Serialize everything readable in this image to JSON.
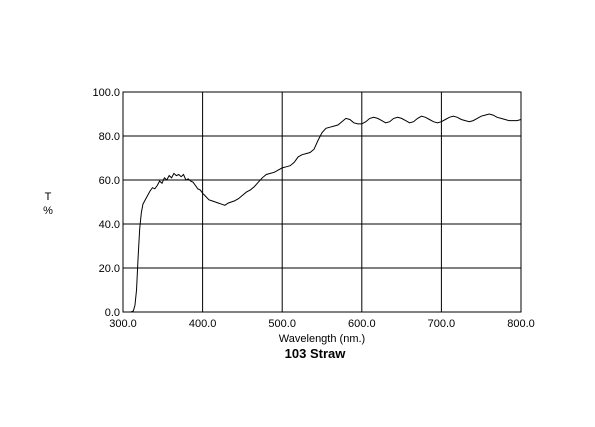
{
  "chart_data": {
    "type": "line",
    "title": "103 Straw",
    "xlabel": "Wavelength (nm.)",
    "ylabel": "T %",
    "ylabel_lines": [
      "T",
      "%"
    ],
    "xlim": [
      300,
      800
    ],
    "ylim": [
      0,
      100
    ],
    "grid": true,
    "x_ticks": [
      300,
      400,
      500,
      600,
      700,
      800
    ],
    "y_ticks": [
      0,
      20,
      40,
      60,
      80,
      100
    ],
    "x_tick_labels": [
      "300.0",
      "400.0",
      "500.0",
      "600.0",
      "700.0",
      "800.0"
    ],
    "y_tick_labels": [
      "0.0",
      "20.0",
      "40.0",
      "60.0",
      "80.0",
      "100.0"
    ],
    "colors": {
      "line": "#000000",
      "grid": "#000000",
      "background": "#ffffff"
    },
    "series": [
      {
        "x": [
          310,
          313,
          315,
          317,
          319,
          321,
          323,
          325,
          328,
          331,
          334,
          337,
          340,
          343,
          346,
          349,
          352,
          355,
          358,
          361,
          364,
          367,
          370,
          373,
          376,
          379,
          382,
          385,
          388,
          391,
          394,
          397,
          400,
          404,
          408,
          412,
          416,
          420,
          424,
          428,
          432,
          436,
          440,
          445,
          450,
          455,
          460,
          465,
          470,
          475,
          480,
          485,
          490,
          495,
          500,
          505,
          510,
          515,
          520,
          525,
          530,
          535,
          540,
          545,
          550,
          555,
          560,
          565,
          570,
          575,
          580,
          585,
          590,
          595,
          600,
          605,
          610,
          615,
          620,
          625,
          630,
          635,
          640,
          645,
          650,
          655,
          660,
          665,
          670,
          675,
          680,
          685,
          690,
          695,
          700,
          705,
          710,
          715,
          720,
          725,
          730,
          735,
          740,
          745,
          750,
          755,
          760,
          765,
          770,
          775,
          780,
          785,
          790,
          795,
          800
        ],
        "values": [
          0.0,
          0.5,
          3.0,
          10.0,
          25.0,
          38.0,
          45.0,
          49.0,
          51.0,
          53.0,
          55.0,
          56.5,
          56.0,
          57.5,
          59.5,
          58.5,
          61.0,
          60.0,
          62.0,
          61.0,
          63.0,
          62.0,
          62.5,
          61.5,
          62.5,
          60.0,
          60.5,
          59.5,
          59.0,
          57.5,
          56.0,
          55.5,
          54.0,
          52.5,
          51.0,
          50.5,
          50.0,
          49.5,
          49.0,
          48.5,
          49.5,
          50.0,
          50.5,
          51.5,
          53.0,
          54.5,
          55.5,
          57.0,
          59.0,
          61.0,
          62.5,
          63.0,
          63.5,
          64.5,
          65.5,
          66.0,
          66.5,
          68.0,
          70.5,
          71.5,
          72.0,
          72.5,
          74.0,
          78.0,
          81.5,
          83.5,
          84.0,
          84.5,
          85.0,
          86.5,
          88.0,
          87.5,
          86.0,
          85.5,
          85.5,
          86.5,
          88.0,
          88.5,
          88.0,
          87.0,
          86.0,
          86.5,
          88.0,
          88.5,
          88.0,
          87.0,
          86.0,
          86.5,
          88.0,
          89.0,
          88.5,
          87.5,
          86.5,
          86.0,
          86.5,
          87.5,
          88.5,
          89.0,
          88.5,
          87.5,
          87.0,
          86.5,
          87.0,
          88.0,
          89.0,
          89.5,
          90.0,
          89.5,
          88.5,
          88.0,
          87.5,
          87.0,
          87.0,
          87.0,
          87.5
        ]
      }
    ]
  }
}
